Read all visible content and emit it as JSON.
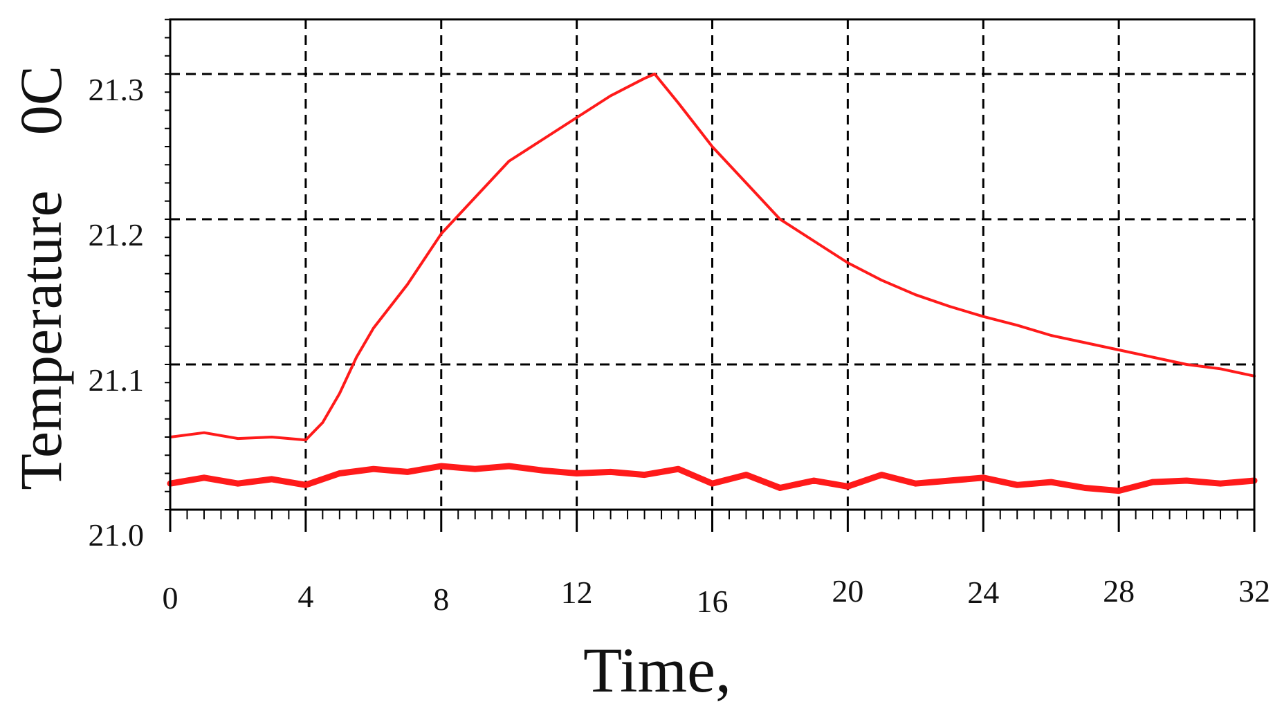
{
  "chart_data": {
    "type": "line",
    "title": "",
    "xlabel": "Time,",
    "ylabel": "Temperature",
    "ylabel_unit": "0C",
    "xlim": [
      0,
      32
    ],
    "ylim": [
      21.0,
      21.35
    ],
    "xticks": [
      0,
      4,
      8,
      12,
      16,
      20,
      24,
      28,
      32
    ],
    "xtick_labels": [
      "0",
      "4",
      "8",
      "12",
      "16",
      "20",
      "24",
      "28",
      "32"
    ],
    "yticks": [
      21.0,
      21.1,
      21.2,
      21.3
    ],
    "ytick_labels": [
      "21.0",
      "21.1",
      "21.2",
      "21.3"
    ],
    "grid": true,
    "grid_style": "dashed",
    "series": [
      {
        "color": "#ff1a1a",
        "x": [
          0,
          1,
          2,
          3,
          4,
          4.5,
          5,
          5.5,
          6,
          7,
          8,
          9,
          10,
          11,
          12,
          13,
          14,
          14.3,
          15,
          16,
          17,
          18,
          19,
          20,
          21,
          22,
          23,
          24,
          25,
          26,
          27,
          28,
          29,
          30,
          31,
          32
        ],
        "y": [
          21.05,
          21.053,
          21.049,
          21.05,
          21.048,
          21.06,
          21.08,
          21.105,
          21.125,
          21.155,
          21.19,
          21.215,
          21.24,
          21.255,
          21.27,
          21.285,
          21.297,
          21.3,
          21.28,
          21.25,
          21.225,
          21.2,
          21.185,
          21.17,
          21.158,
          21.148,
          21.14,
          21.133,
          21.127,
          21.12,
          21.115,
          21.11,
          21.105,
          21.1,
          21.097,
          21.092
        ]
      },
      {
        "color": "#ff1a1a",
        "x": [
          0,
          1,
          2,
          3,
          4,
          5,
          6,
          7,
          8,
          9,
          10,
          11,
          12,
          13,
          14,
          15,
          16,
          17,
          18,
          19,
          20,
          21,
          22,
          23,
          24,
          25,
          26,
          27,
          28,
          29,
          30,
          31,
          32
        ],
        "y": [
          21.018,
          21.022,
          21.018,
          21.021,
          21.017,
          21.025,
          21.028,
          21.026,
          21.03,
          21.028,
          21.03,
          21.027,
          21.025,
          21.026,
          21.024,
          21.028,
          21.018,
          21.024,
          21.015,
          21.02,
          21.016,
          21.024,
          21.018,
          21.02,
          21.022,
          21.017,
          21.019,
          21.015,
          21.013,
          21.019,
          21.02,
          21.018,
          21.02
        ]
      }
    ]
  }
}
